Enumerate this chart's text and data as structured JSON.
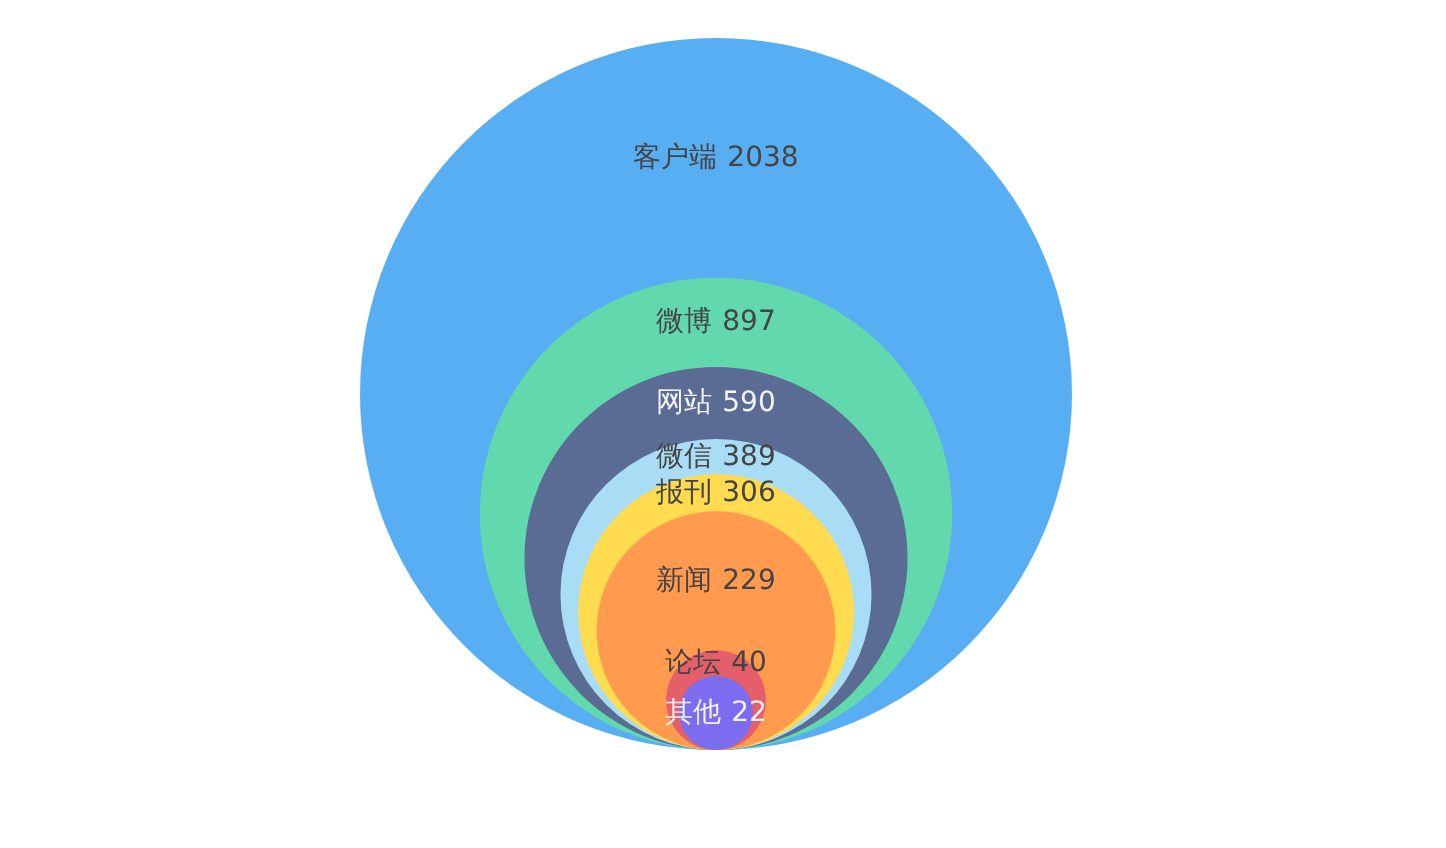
{
  "chart_data": {
    "type": "other",
    "data_labels": true,
    "categories": [
      "客户端",
      "微博",
      "网站",
      "微信",
      "报刊",
      "新闻",
      "论坛",
      "其他"
    ],
    "values": [
      2038,
      897,
      590,
      389,
      306,
      229,
      40,
      22
    ],
    "colors": [
      "#58aef2",
      "#62d9ac",
      "#5b6c94",
      "#a9dcf5",
      "#ffdb50",
      "#ff9a4e",
      "#e45f6a",
      "#7b6cf0"
    ]
  }
}
